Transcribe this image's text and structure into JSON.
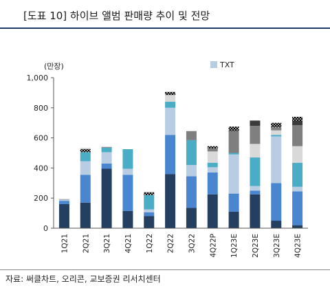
{
  "title": "[도표 10] 하이브 앨범 판매량 추이 및 전망",
  "source": "자료: 써클차트, 오리콘, 교보증권 리서치센터",
  "chart_data": {
    "type": "bar",
    "stacked": true,
    "unit_label": "(만장)",
    "ylim": [
      0,
      1000
    ],
    "yticks": [
      "0",
      "200",
      "400",
      "600",
      "800",
      "1,000"
    ],
    "categories": [
      "1Q21",
      "2Q21",
      "3Q21",
      "4Q21",
      "1Q22",
      "2Q22",
      "3Q22",
      "4Q22P",
      "1Q23E",
      "2Q23E",
      "3Q23E",
      "4Q23E"
    ],
    "legend": [
      {
        "name": "TXT",
        "color": "#b8cce4"
      }
    ],
    "segments": [
      [
        {
          "value": 160,
          "color": "#243f60"
        },
        {
          "value": 22,
          "color": "#4a86cf"
        },
        {
          "value": 8,
          "color": "#b8cce4"
        },
        {
          "value": 3,
          "color": "#7f7f7f"
        }
      ],
      [
        {
          "value": 170,
          "color": "#243f60"
        },
        {
          "value": 185,
          "color": "#4a86cf"
        },
        {
          "value": 90,
          "color": "#b8cce4"
        },
        {
          "value": 60,
          "color": "#4bacc6"
        },
        {
          "value": 20,
          "color": "#000000"
        },
        {
          "value": 8,
          "color": "#cfcfcf"
        }
      ],
      [
        {
          "value": 395,
          "color": "#243f60"
        },
        {
          "value": 35,
          "color": "#4a86cf"
        },
        {
          "value": 75,
          "color": "#b8cce4"
        },
        {
          "value": 30,
          "color": "#4bacc6"
        },
        {
          "value": 5,
          "color": "#7f7f7f"
        }
      ],
      [
        {
          "value": 115,
          "color": "#243f60"
        },
        {
          "value": 240,
          "color": "#4a86cf"
        },
        {
          "value": 40,
          "color": "#b8cce4"
        },
        {
          "value": 130,
          "color": "#4bacc6"
        }
      ],
      [
        {
          "value": 80,
          "color": "#243f60"
        },
        {
          "value": 25,
          "color": "#4a86cf"
        },
        {
          "value": 20,
          "color": "#b8cce4"
        },
        {
          "value": 95,
          "color": "#4bacc6"
        },
        {
          "value": 18,
          "color": "#000000"
        },
        {
          "value": 5,
          "color": "#cfcfcf"
        }
      ],
      [
        {
          "value": 360,
          "color": "#243f60"
        },
        {
          "value": 260,
          "color": "#4a86cf"
        },
        {
          "value": 180,
          "color": "#b8cce4"
        },
        {
          "value": 40,
          "color": "#4bacc6"
        },
        {
          "value": 45,
          "color": "#d9d9d9"
        },
        {
          "value": 20,
          "color": "#000000"
        }
      ],
      [
        {
          "value": 135,
          "color": "#243f60"
        },
        {
          "value": 210,
          "color": "#4a86cf"
        },
        {
          "value": 75,
          "color": "#b8cce4"
        },
        {
          "value": 165,
          "color": "#4bacc6"
        },
        {
          "value": 60,
          "color": "#7f7f7f"
        }
      ],
      [
        {
          "value": 225,
          "color": "#243f60"
        },
        {
          "value": 145,
          "color": "#4a86cf"
        },
        {
          "value": 35,
          "color": "#b8cce4"
        },
        {
          "value": 30,
          "color": "#4bacc6"
        },
        {
          "value": 75,
          "color": "#d9d9d9"
        },
        {
          "value": 20,
          "color": "#7f7f7f"
        },
        {
          "value": 15,
          "color": "#000000"
        }
      ],
      [
        {
          "value": 110,
          "color": "#243f60"
        },
        {
          "value": 120,
          "color": "#4a86cf"
        },
        {
          "value": 260,
          "color": "#b8cce4"
        },
        {
          "value": 10,
          "color": "#4bacc6"
        },
        {
          "value": 145,
          "color": "#7f7f7f"
        },
        {
          "value": 30,
          "color": "#000000"
        }
      ],
      [
        {
          "value": 225,
          "color": "#243f60"
        },
        {
          "value": 25,
          "color": "#4a86cf"
        },
        {
          "value": 30,
          "color": "#b8cce4"
        },
        {
          "value": 190,
          "color": "#4bacc6"
        },
        {
          "value": 90,
          "color": "#d9d9d9"
        },
        {
          "value": 120,
          "color": "#7f7f7f"
        },
        {
          "value": 35,
          "color": "#3a3a3a"
        }
      ],
      [
        {
          "value": 50,
          "color": "#243f60"
        },
        {
          "value": 250,
          "color": "#4a86cf"
        },
        {
          "value": 310,
          "color": "#b8cce4"
        },
        {
          "value": 10,
          "color": "#4bacc6"
        },
        {
          "value": 30,
          "color": "#d9d9d9"
        },
        {
          "value": 20,
          "color": "#7f7f7f"
        },
        {
          "value": 30,
          "color": "#000000"
        }
      ],
      [
        {
          "value": 20,
          "color": "#243f60"
        },
        {
          "value": 225,
          "color": "#4a86cf"
        },
        {
          "value": 30,
          "color": "#b8cce4"
        },
        {
          "value": 160,
          "color": "#4bacc6"
        },
        {
          "value": 110,
          "color": "#d9d9d9"
        },
        {
          "value": 140,
          "color": "#7f7f7f"
        },
        {
          "value": 25,
          "color": "#3a3a3a"
        },
        {
          "value": 30,
          "color": "#000000"
        }
      ]
    ]
  }
}
